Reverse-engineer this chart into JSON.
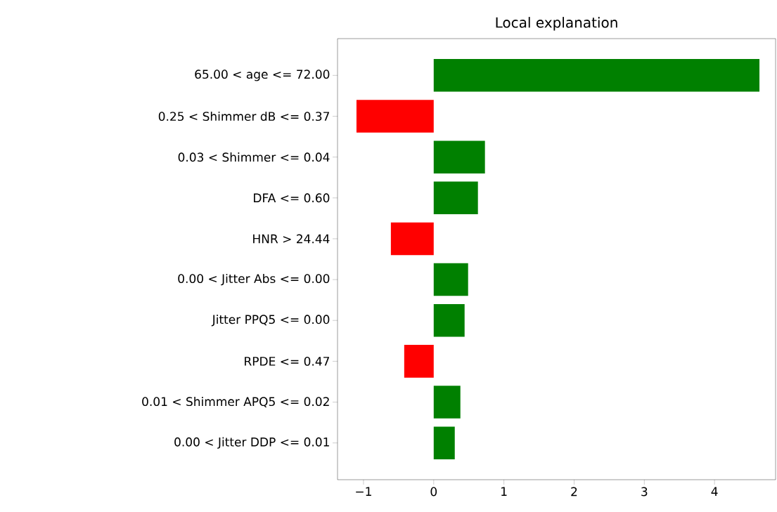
{
  "chart_data": {
    "type": "bar",
    "orientation": "horizontal",
    "title": "Local explanation",
    "categories": [
      "65.00 < age <= 72.00",
      "0.25 < Shimmer dB  <= 0.37",
      "0.03 < Shimmer <= 0.04",
      "DFA <= 0.60",
      "HNR > 24.44",
      "0.00 < Jitter Abs  <= 0.00",
      "Jitter PPQ5 <= 0.00",
      "RPDE <= 0.47",
      "0.01 < Shimmer APQ5 <= 0.02",
      "0.00 < Jitter DDP <= 0.01"
    ],
    "values": [
      4.64,
      -1.1,
      0.73,
      0.63,
      -0.61,
      0.49,
      0.44,
      -0.42,
      0.38,
      0.3
    ],
    "colors": [
      "#008000",
      "#ff0000",
      "#008000",
      "#008000",
      "#ff0000",
      "#008000",
      "#008000",
      "#ff0000",
      "#008000",
      "#008000"
    ],
    "xlim": [
      -1.37,
      4.87
    ],
    "xticks": [
      {
        "value": -1,
        "label": "−1"
      },
      0,
      1,
      2,
      3,
      4
    ],
    "grid": false
  }
}
